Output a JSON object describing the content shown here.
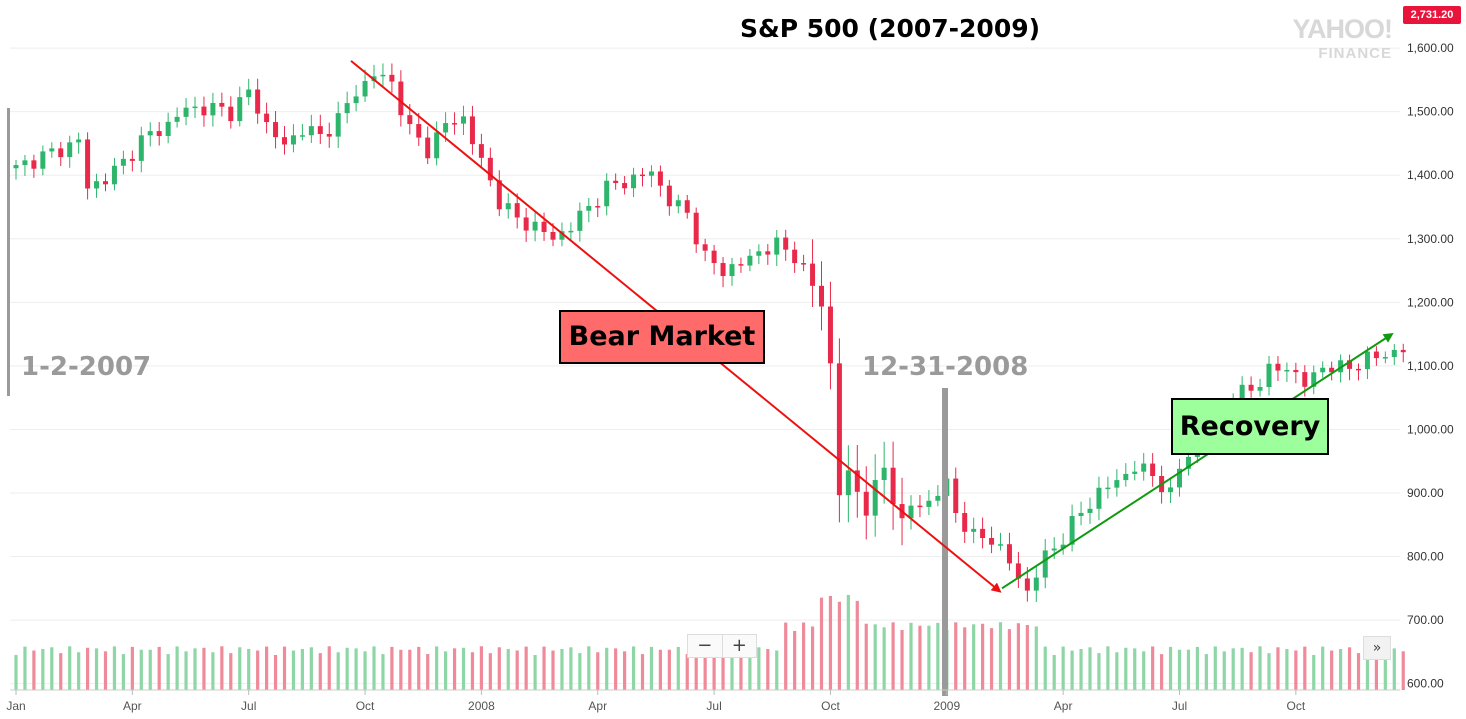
{
  "chart_data": {
    "type": "candlestick",
    "title": "S&P 500 (2007-2009)",
    "ylim": [
      590,
      1660
    ],
    "y_ticks": [
      "1,600.00",
      "1,500.00",
      "1,400.00",
      "1,300.00",
      "1,200.00",
      "1,100.00",
      "1,000.00",
      "900.00",
      "800.00",
      "700.00",
      "600.00"
    ],
    "y_tick_values": [
      1600,
      1500,
      1400,
      1300,
      1200,
      1100,
      1000,
      900,
      800,
      700,
      600
    ],
    "x_ticks": [
      "Jan",
      "Apr",
      "Jul",
      "Oct",
      "2008",
      "Apr",
      "Jul",
      "Oct",
      "2009",
      "Apr",
      "Jul",
      "Oct"
    ],
    "x_tick_week_index": [
      0,
      13,
      26,
      39,
      52,
      65,
      78,
      91,
      104,
      117,
      130,
      143
    ],
    "weeks": 156,
    "close_anchors": [
      [
        0,
        1410
      ],
      [
        2,
        1425
      ],
      [
        5,
        1440
      ],
      [
        7,
        1455
      ],
      [
        8,
        1380
      ],
      [
        10,
        1395
      ],
      [
        12,
        1420
      ],
      [
        14,
        1455
      ],
      [
        17,
        1480
      ],
      [
        19,
        1505
      ],
      [
        22,
        1505
      ],
      [
        24,
        1500
      ],
      [
        26,
        1530
      ],
      [
        28,
        1480
      ],
      [
        30,
        1445
      ],
      [
        32,
        1475
      ],
      [
        34,
        1460
      ],
      [
        36,
        1490
      ],
      [
        38,
        1530
      ],
      [
        40,
        1560
      ],
      [
        42,
        1545
      ],
      [
        44,
        1470
      ],
      [
        46,
        1440
      ],
      [
        48,
        1480
      ],
      [
        50,
        1490
      ],
      [
        52,
        1420
      ],
      [
        54,
        1360
      ],
      [
        56,
        1330
      ],
      [
        58,
        1320
      ],
      [
        60,
        1300
      ],
      [
        62,
        1320
      ],
      [
        64,
        1350
      ],
      [
        66,
        1380
      ],
      [
        69,
        1395
      ],
      [
        71,
        1405
      ],
      [
        73,
        1360
      ],
      [
        75,
        1340
      ],
      [
        77,
        1270
      ],
      [
        79,
        1250
      ],
      [
        81,
        1260
      ],
      [
        83,
        1280
      ],
      [
        85,
        1290
      ],
      [
        87,
        1275
      ],
      [
        88,
        1250
      ],
      [
        90,
        1200
      ],
      [
        91,
        1100
      ],
      [
        92,
        900
      ],
      [
        93,
        930
      ],
      [
        95,
        875
      ],
      [
        97,
        940
      ],
      [
        99,
        850
      ],
      [
        100,
        880
      ],
      [
        102,
        885
      ],
      [
        104,
        915
      ],
      [
        105,
        870
      ],
      [
        107,
        830
      ],
      [
        109,
        830
      ],
      [
        111,
        790
      ],
      [
        113,
        745
      ],
      [
        115,
        800
      ],
      [
        117,
        830
      ],
      [
        119,
        870
      ],
      [
        121,
        900
      ],
      [
        123,
        920
      ],
      [
        125,
        940
      ],
      [
        127,
        930
      ],
      [
        129,
        895
      ],
      [
        130,
        940
      ],
      [
        132,
        990
      ],
      [
        134,
        1020
      ],
      [
        136,
        1050
      ],
      [
        138,
        1065
      ],
      [
        140,
        1090
      ],
      [
        142,
        1100
      ],
      [
        144,
        1070
      ],
      [
        146,
        1100
      ],
      [
        148,
        1095
      ],
      [
        150,
        1105
      ],
      [
        152,
        1115
      ],
      [
        155,
        1125
      ]
    ],
    "volume_range": [
      0,
      14
    ],
    "volume_unit": "billion shares",
    "annotations": {
      "start_date": "1-2-2007",
      "end_2008_date": "12-31-2008",
      "bear_label": "Bear Market",
      "recovery_label": "Recovery"
    },
    "bear_trend": {
      "from": [
        "2007-10-09",
        1580
      ],
      "to": [
        "2009-03-09",
        740
      ]
    },
    "recovery_trend": {
      "from": [
        "2009-03-16",
        750
      ],
      "to": [
        "2010-01-04",
        1150
      ]
    },
    "colors": {
      "up": "#2db56b",
      "down": "#e8294a",
      "vol_up": "#8ed6a6",
      "vol_down": "#ee8a9a",
      "bear_line": "#ee1111",
      "recovery_line": "#119a11",
      "marker": "#9a9a9a"
    }
  },
  "ui": {
    "current_price": "2,731.20",
    "watermark_line1": "YAHOO!",
    "watermark_line2": "FINANCE",
    "zoom_out": "−",
    "zoom_in": "+",
    "scroll_right": "»",
    "icons": {
      "zoom_out": "minus-icon",
      "zoom_in": "plus-icon",
      "scroll": "double-chevron-right-icon"
    }
  }
}
